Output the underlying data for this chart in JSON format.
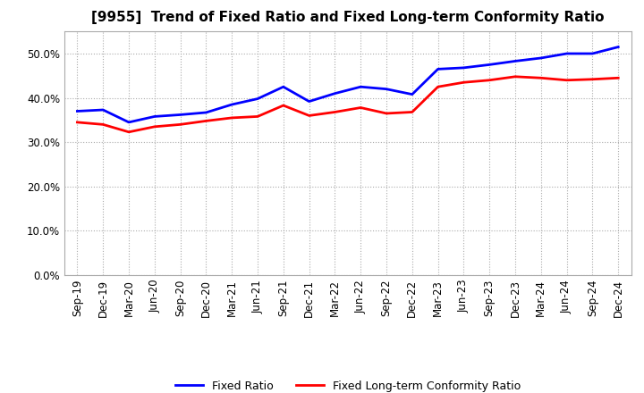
{
  "title": "[9955]  Trend of Fixed Ratio and Fixed Long-term Conformity Ratio",
  "x_labels": [
    "Sep-19",
    "Dec-19",
    "Mar-20",
    "Jun-20",
    "Sep-20",
    "Dec-20",
    "Mar-21",
    "Jun-21",
    "Sep-21",
    "Dec-21",
    "Mar-22",
    "Jun-22",
    "Sep-22",
    "Dec-22",
    "Mar-23",
    "Jun-23",
    "Sep-23",
    "Dec-23",
    "Mar-24",
    "Jun-24",
    "Sep-24",
    "Dec-24"
  ],
  "fixed_ratio": [
    0.37,
    0.373,
    0.345,
    0.358,
    0.362,
    0.367,
    0.385,
    0.398,
    0.425,
    0.392,
    0.41,
    0.425,
    0.42,
    0.408,
    0.465,
    0.468,
    0.475,
    0.483,
    0.49,
    0.5,
    0.5,
    0.515
  ],
  "fixed_lt_ratio": [
    0.345,
    0.34,
    0.323,
    0.335,
    0.34,
    0.348,
    0.355,
    0.358,
    0.383,
    0.36,
    0.368,
    0.378,
    0.365,
    0.368,
    0.425,
    0.435,
    0.44,
    0.448,
    0.445,
    0.44,
    0.442,
    0.445
  ],
  "fixed_ratio_color": "#0000FF",
  "fixed_lt_ratio_color": "#FF0000",
  "background_color": "#FFFFFF",
  "grid_color": "#AAAAAA",
  "ylim": [
    0.0,
    0.55
  ],
  "yticks": [
    0.0,
    0.1,
    0.2,
    0.3,
    0.4,
    0.5
  ],
  "legend_fixed_ratio": "Fixed Ratio",
  "legend_fixed_lt_ratio": "Fixed Long-term Conformity Ratio",
  "title_fontsize": 11,
  "tick_fontsize": 8.5,
  "legend_fontsize": 9
}
